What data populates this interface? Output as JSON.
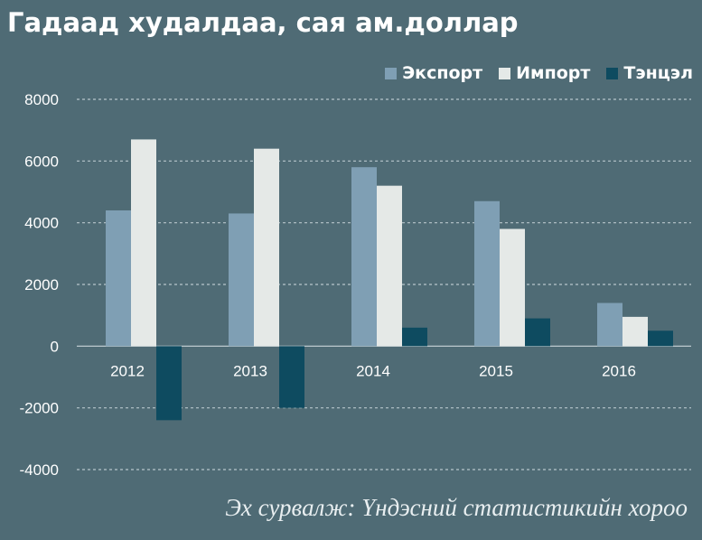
{
  "chart_data": {
    "type": "bar",
    "title": "Гадаад худалдаа, сая ам.доллар",
    "categories": [
      "2012",
      "2013",
      "2014",
      "2015",
      "2016"
    ],
    "series": [
      {
        "name": "Экспорт",
        "color": "#7f9fb4",
        "values": [
          4400,
          4300,
          5800,
          4700,
          1400
        ]
      },
      {
        "name": "Импорт",
        "color": "#e5e9e7",
        "values": [
          6700,
          6400,
          5200,
          3800,
          950
        ]
      },
      {
        "name": "Тэнцэл",
        "color": "#0e4b60",
        "values": [
          -2400,
          -2000,
          600,
          900,
          500
        ]
      }
    ],
    "yticks": [
      "8000",
      "6000",
      "4000",
      "2000",
      "0",
      "-2000",
      "-4000"
    ],
    "ylim": [
      -4000,
      8000
    ],
    "grid": true,
    "legend_position": "top-right",
    "source": "Эх сурвалж: Үндэсний статистикийн хороо"
  }
}
